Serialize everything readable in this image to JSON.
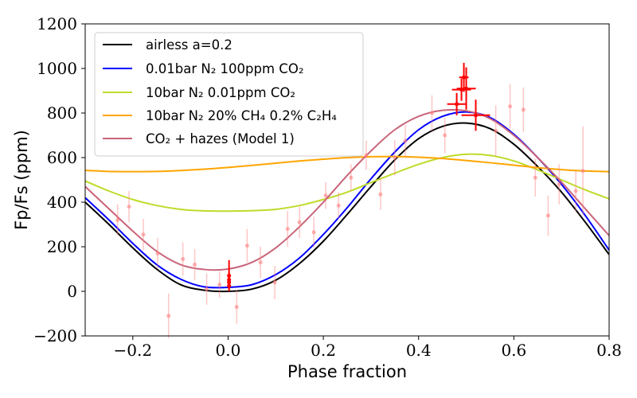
{
  "chart_data": {
    "type": "line",
    "title": "",
    "xlabel": "Phase fraction",
    "ylabel": "Fp/Fs (ppm)",
    "xlim": [
      -0.3,
      0.8
    ],
    "ylim": [
      -200,
      1200
    ],
    "xticks": [
      -0.2,
      0.0,
      0.2,
      0.4,
      0.6,
      0.8
    ],
    "xtick_labels": [
      "−0.2",
      "0.0",
      "0.2",
      "0.4",
      "0.6",
      "0.8"
    ],
    "yticks": [
      -200,
      0,
      200,
      400,
      600,
      800,
      1000,
      1200
    ],
    "ytick_labels": [
      "−200",
      "0",
      "200",
      "400",
      "600",
      "800",
      "1000",
      "1200"
    ],
    "grid": false,
    "legend_position": "top-left",
    "series": [
      {
        "name": "airless a=0.2",
        "color": "#000000",
        "x": [
          -0.3,
          -0.25,
          -0.2,
          -0.15,
          -0.1,
          -0.05,
          0.0,
          0.05,
          0.1,
          0.15,
          0.2,
          0.25,
          0.3,
          0.35,
          0.4,
          0.45,
          0.5,
          0.55,
          0.6,
          0.65,
          0.7,
          0.75,
          0.8
        ],
        "y": [
          400,
          300,
          195,
          100,
          30,
          5,
          0,
          10,
          50,
          125,
          225,
          345,
          470,
          590,
          685,
          740,
          755,
          730,
          660,
          560,
          445,
          310,
          165
        ]
      },
      {
        "name": "0.01bar N2 100ppm CO2",
        "color": "#0000ff",
        "x": [
          -0.3,
          -0.25,
          -0.2,
          -0.15,
          -0.1,
          -0.05,
          0.0,
          0.05,
          0.1,
          0.15,
          0.2,
          0.25,
          0.3,
          0.35,
          0.4,
          0.45,
          0.5,
          0.55,
          0.6,
          0.65,
          0.7,
          0.75,
          0.8
        ],
        "y": [
          420,
          320,
          215,
          120,
          55,
          20,
          18,
          30,
          75,
          150,
          255,
          375,
          505,
          625,
          725,
          785,
          805,
          780,
          705,
          600,
          480,
          340,
          185
        ]
      },
      {
        "name": "10bar N2 0.01ppm CO2",
        "color": "#bfdb2a",
        "x": [
          -0.3,
          -0.25,
          -0.2,
          -0.15,
          -0.1,
          -0.05,
          0.0,
          0.05,
          0.1,
          0.15,
          0.2,
          0.25,
          0.3,
          0.35,
          0.4,
          0.45,
          0.5,
          0.55,
          0.6,
          0.65,
          0.7,
          0.75,
          0.8
        ],
        "y": [
          495,
          450,
          412,
          385,
          368,
          361,
          360,
          362,
          368,
          385,
          412,
          445,
          488,
          530,
          570,
          600,
          615,
          610,
          585,
          545,
          500,
          455,
          415
        ]
      },
      {
        "name": "10bar N2 20% CH4 0.2% C2H4",
        "color": "#ffa500",
        "x": [
          -0.3,
          -0.25,
          -0.2,
          -0.15,
          -0.1,
          -0.05,
          0.0,
          0.05,
          0.1,
          0.15,
          0.2,
          0.25,
          0.3,
          0.35,
          0.4,
          0.45,
          0.5,
          0.55,
          0.6,
          0.65,
          0.7,
          0.75,
          0.8
        ],
        "y": [
          543,
          538,
          537,
          538,
          542,
          548,
          556,
          565,
          575,
          585,
          593,
          600,
          604,
          605,
          602,
          596,
          587,
          577,
          566,
          555,
          546,
          540,
          537
        ]
      },
      {
        "name": "CO2 + hazes (Model 1)",
        "color": "#c9647a",
        "x": [
          -0.3,
          -0.25,
          -0.2,
          -0.15,
          -0.1,
          -0.05,
          0.0,
          0.05,
          0.1,
          0.15,
          0.2,
          0.25,
          0.3,
          0.35,
          0.4,
          0.45,
          0.5,
          0.55,
          0.6,
          0.65,
          0.7,
          0.75,
          0.8
        ],
        "y": [
          470,
          370,
          270,
          180,
          120,
          98,
          100,
          130,
          195,
          290,
          400,
          520,
          630,
          725,
          785,
          812,
          810,
          775,
          700,
          600,
          490,
          370,
          250
        ]
      }
    ],
    "observations_faint": {
      "color": "#ff8080",
      "x": [
        -0.232,
        -0.208,
        -0.178,
        -0.148,
        -0.125,
        -0.095,
        -0.07,
        -0.045,
        -0.018,
        0.018,
        0.04,
        0.068,
        0.098,
        0.125,
        0.15,
        0.18,
        0.205,
        0.232,
        0.258,
        0.29,
        0.32,
        0.35,
        0.372,
        0.428,
        0.455,
        0.562,
        0.592,
        0.62,
        0.645,
        0.672,
        0.695,
        0.73,
        0.745
      ],
      "y": [
        320,
        380,
        255,
        170,
        -110,
        145,
        120,
        10,
        30,
        -70,
        205,
        130,
        40,
        280,
        310,
        265,
        430,
        385,
        510,
        610,
        435,
        600,
        675,
        800,
        700,
        720,
        830,
        815,
        510,
        340,
        480,
        450,
        540
      ],
      "err": [
        70,
        70,
        70,
        70,
        100,
        75,
        70,
        70,
        60,
        75,
        75,
        70,
        75,
        80,
        70,
        70,
        60,
        60,
        60,
        65,
        70,
        80,
        70,
        80,
        80,
        115,
        100,
        100,
        85,
        90,
        90,
        90,
        200
      ]
    },
    "observations_bold": {
      "color": "#ff0000",
      "points": [
        {
          "x": 0.002,
          "y": 70,
          "xerr": 0.0,
          "yerr": 70
        },
        {
          "x": 0.002,
          "y": 52,
          "xerr": 0.0,
          "yerr": 35
        },
        {
          "x": 0.002,
          "y": 40,
          "xerr": 0.0,
          "yerr": 30
        },
        {
          "x": 0.002,
          "y": 25,
          "xerr": 0.0,
          "yerr": 20
        },
        {
          "x": 0.48,
          "y": 840,
          "xerr": 0.02,
          "yerr": 50
        },
        {
          "x": 0.49,
          "y": 905,
          "xerr": 0.02,
          "yerr": 50
        },
        {
          "x": 0.495,
          "y": 960,
          "xerr": 0.01,
          "yerr": 65
        },
        {
          "x": 0.5,
          "y": 910,
          "xerr": 0.02,
          "yerr": 95
        },
        {
          "x": 0.52,
          "y": 790,
          "xerr": 0.03,
          "yerr": 70
        }
      ]
    }
  },
  "legend": {
    "entries": [
      {
        "label": "airless a=0.2",
        "color": "#000000"
      },
      {
        "label": "0.01bar N₂ 100ppm CO₂",
        "color": "#0000ff"
      },
      {
        "label": "10bar N₂ 0.01ppm CO₂",
        "color": "#bfdb2a"
      },
      {
        "label": "10bar N₂ 20% CH₄ 0.2% C₂H₄",
        "color": "#ffa500"
      },
      {
        "label": "CO₂ + hazes (Model 1)",
        "color": "#c9647a"
      }
    ]
  }
}
